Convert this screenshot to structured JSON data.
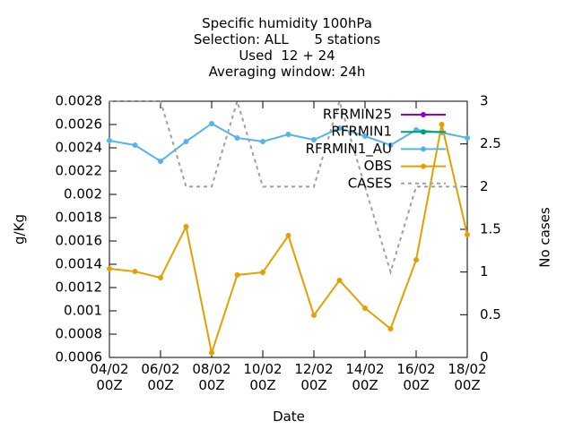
{
  "chart_data": {
    "type": "line",
    "title": "Specific humidity 100hPa\nSelection: ALL      5 stations\nUsed  12 + 24\nAveraging window: 24h",
    "xlabel": "Date",
    "ylabel": "g/Kg",
    "y2label": "No cases",
    "x": [
      4,
      5,
      6,
      7,
      8,
      9,
      10,
      11,
      12,
      13,
      14,
      15,
      16,
      17,
      18
    ],
    "xlim": [
      4,
      18
    ],
    "xticks": [
      {
        "value": 4,
        "label": "04/02\n00Z"
      },
      {
        "value": 6,
        "label": "06/02\n00Z"
      },
      {
        "value": 8,
        "label": "08/02\n00Z"
      },
      {
        "value": 10,
        "label": "10/02\n00Z"
      },
      {
        "value": 12,
        "label": "12/02\n00Z"
      },
      {
        "value": 14,
        "label": "14/02\n00Z"
      },
      {
        "value": 16,
        "label": "16/02\n00Z"
      },
      {
        "value": 18,
        "label": "18/02\n00Z"
      }
    ],
    "ylim": [
      0.0006,
      0.0028
    ],
    "yticks": [
      0.0006,
      0.0008,
      0.001,
      0.0012,
      0.0014,
      0.0016,
      0.0018,
      0.002,
      0.0022,
      0.0024,
      0.0026,
      0.0028
    ],
    "y2lim": [
      0,
      3
    ],
    "y2ticks": [
      0,
      0.5,
      1,
      1.5,
      2,
      2.5,
      3
    ],
    "series": [
      {
        "name": "RFRMIN25",
        "color": "#9400d3",
        "markers": true,
        "values": [
          null,
          null,
          null,
          null,
          null,
          null,
          null,
          null,
          null,
          null,
          null,
          null,
          null,
          null,
          null
        ]
      },
      {
        "name": "RFRMIN1",
        "color": "#009e73",
        "markers": true,
        "values": [
          null,
          null,
          null,
          null,
          null,
          null,
          null,
          null,
          null,
          null,
          null,
          null,
          null,
          null,
          null
        ]
      },
      {
        "name": "RFRMIN1_AU",
        "color": "#56b4e9",
        "markers": true,
        "values": [
          0.002462,
          0.002423,
          0.002285,
          0.002454,
          0.002608,
          0.002485,
          0.002454,
          0.002515,
          0.002469,
          0.002569,
          0.0025,
          0.002423,
          0.002554,
          0.002531,
          0.002485
        ]
      },
      {
        "name": "OBS",
        "color": "#e69f00",
        "markers": true,
        "values": [
          0.001362,
          0.001338,
          0.001285,
          0.001723,
          0.00064,
          0.001308,
          0.001331,
          0.001646,
          0.000962,
          0.001262,
          0.001023,
          0.000846,
          0.001438,
          0.0026,
          0.001654
        ]
      },
      {
        "name": "CASES",
        "color": "#a0a0a0",
        "markers": false,
        "dashed": true,
        "axis": "y2",
        "values": [
          3,
          3,
          3,
          2,
          2,
          3,
          2,
          2,
          2,
          3,
          2,
          1,
          2,
          2,
          2
        ]
      }
    ]
  }
}
